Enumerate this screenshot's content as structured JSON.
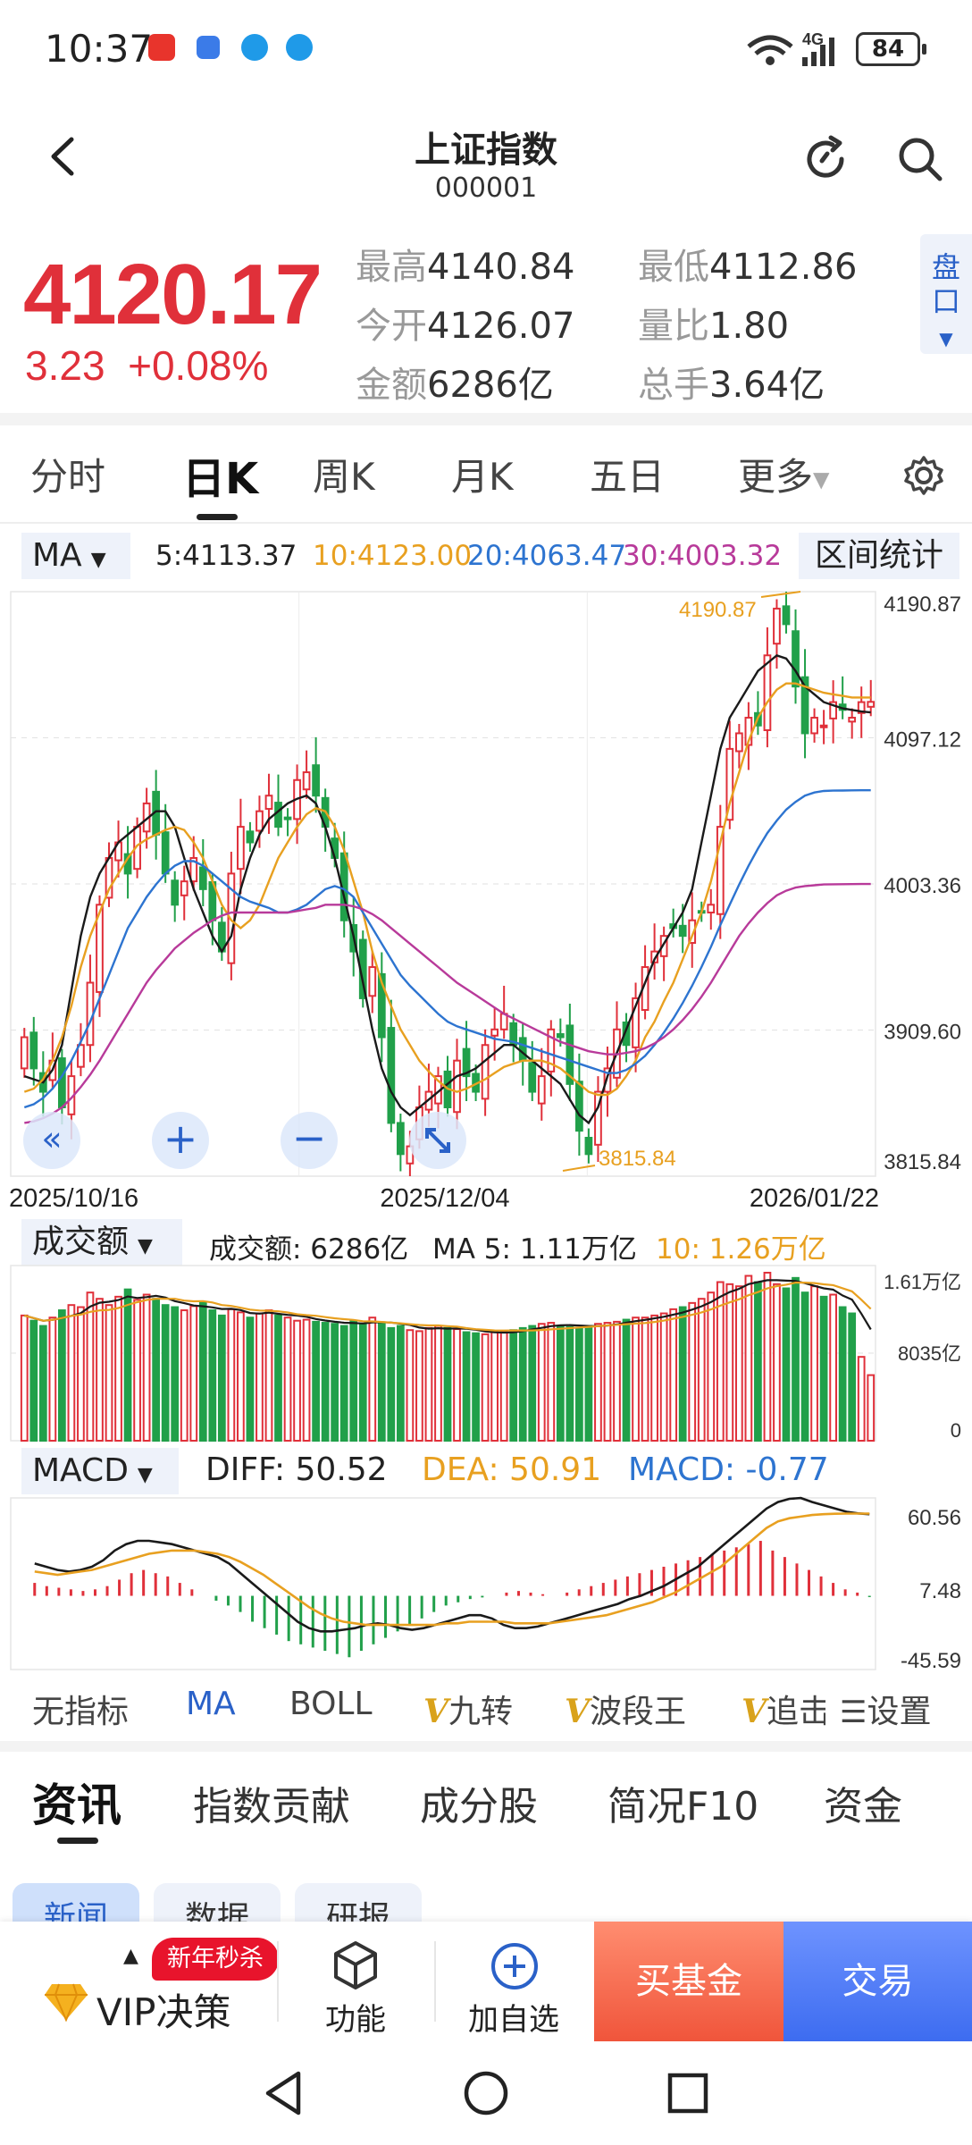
{
  "status_bar": {
    "time": "10:37",
    "network": "4G",
    "battery": "84",
    "colors": [
      "#e8342c",
      "#3b7be8",
      "#1f9ae8",
      "#1f9ae8"
    ]
  },
  "header": {
    "title": "上证指数",
    "code": "000001"
  },
  "quote": {
    "price": "4120.17",
    "change": "3.23",
    "change_pct": "+0.08%",
    "high_label": "最高",
    "high": "4140.84",
    "low_label": "最低",
    "low": "4112.86",
    "open_label": "今开",
    "open": "4126.07",
    "vol_ratio_label": "量比",
    "vol_ratio": "1.80",
    "amount_label": "金额",
    "amount": "6286亿",
    "hands_label": "总手",
    "hands": "3.64亿",
    "pan_label": "盘口"
  },
  "period_tabs": [
    {
      "label": "分时"
    },
    {
      "label": "日K"
    },
    {
      "label": "周K"
    },
    {
      "label": "月K"
    },
    {
      "label": "五日"
    },
    {
      "label": "更多"
    }
  ],
  "ma_bar": {
    "selector": "MA",
    "ma5": "5:4113.37",
    "ma10": "10:4123.00",
    "ma20": "20:4063.47",
    "ma30": "30:4003.32",
    "range_stats": "区间统计"
  },
  "kline_axis": {
    "y_labels": [
      "4190.87",
      "4097.12",
      "4003.36",
      "3909.60",
      "3815.84"
    ],
    "x_labels": [
      "2025/10/16",
      "2025/12/04",
      "2026/01/22"
    ],
    "max_annotation": "4190.87",
    "min_annotation": "3815.84"
  },
  "volume_bar": {
    "selector": "成交额",
    "amount": "成交额: 6286亿",
    "ma5": "MA 5: 1.11万亿",
    "ma10": "10: 1.26万亿",
    "y_labels": [
      "1.61万亿",
      "8035亿",
      "0"
    ]
  },
  "macd_bar": {
    "selector": "MACD",
    "diff": "DIFF: 50.52",
    "dea": "DEA: 50.91",
    "macd": "MACD: -0.77",
    "y_labels": [
      "60.56",
      "7.48",
      "-45.59"
    ]
  },
  "indicator_tabs": {
    "none": "无指标",
    "ma": "MA",
    "boll": "BOLL",
    "jiuzhuan": "九转",
    "boduan": "波段王",
    "zhuigao": "追击",
    "settings": "设置"
  },
  "news_tabs": [
    {
      "label": "资讯"
    },
    {
      "label": "指数贡献"
    },
    {
      "label": "成分股"
    },
    {
      "label": "简况F10"
    },
    {
      "label": "资金"
    }
  ],
  "news_chips": [
    {
      "label": "新闻"
    },
    {
      "label": "数据"
    },
    {
      "label": "研报"
    }
  ],
  "bottom_bar": {
    "vip": "VIP决策",
    "promo": "新年秒杀",
    "func": "功能",
    "add_watch": "加自选",
    "buy_fund": "买基金",
    "trade": "交易"
  },
  "colors": {
    "up": "#e0303a",
    "down": "#21a04a",
    "ma5": "#1a1a1a",
    "ma10": "#e8a020",
    "ma20": "#2d74d0",
    "ma30": "#b83a9a",
    "accent": "#2a61c8"
  },
  "chart_data": [
    {
      "type": "candlestick",
      "title": "日K",
      "x_range": [
        "2025/10/16",
        "2026/01/22"
      ],
      "ylim": [
        3815.84,
        4190.87
      ],
      "x_labels": [
        "2025/10/16",
        "2025/12/04",
        "2026/01/22"
      ],
      "highest": 4190.87,
      "lowest": 3815.84,
      "series": [
        {
          "name": "close",
          "values": [
            3905,
            3885,
            3870,
            3890,
            3860,
            3880,
            3900,
            3940,
            3990,
            4020,
            4030,
            4010,
            4040,
            4055,
            4035,
            4010,
            3990,
            4005,
            4020,
            4000,
            3980,
            3960,
            4010,
            4040,
            4030,
            4050,
            4060,
            4040,
            4045,
            4070,
            4075,
            4060,
            4040,
            4020,
            3980,
            3960,
            3930,
            3950,
            3905,
            3850,
            3830,
            3835,
            3860,
            3870,
            3880,
            3860,
            3890,
            3880,
            3870,
            3900,
            3910,
            3920,
            3900,
            3890,
            3870,
            3880,
            3910,
            3905,
            3875,
            3845,
            3830,
            3870,
            3885,
            3910,
            3900,
            3930,
            3950,
            3960,
            3970,
            3975,
            3970,
            3980,
            3985,
            3990,
            4040,
            4090,
            4100,
            4110,
            4105,
            4150,
            4180,
            4170,
            4130,
            4100,
            4110,
            4105,
            4120,
            4115,
            4110,
            4120,
            4120.17
          ]
        },
        {
          "name": "MA5",
          "values": [
            3880,
            3878,
            3876,
            3884,
            3900,
            3935,
            3970,
            3995,
            4010,
            4020,
            4030,
            4035,
            4040,
            4045,
            4050,
            4050,
            4040,
            4020,
            4000,
            3985,
            3970,
            3960,
            3970,
            4000,
            4020,
            4035,
            4045,
            4050,
            4055,
            4058,
            4060,
            4055,
            4040,
            4020,
            3995,
            3970,
            3940,
            3910,
            3885,
            3870,
            3860,
            3855,
            3860,
            3865,
            3870,
            3875,
            3880,
            3882,
            3885,
            3890,
            3895,
            3900,
            3900,
            3895,
            3890,
            3885,
            3880,
            3875,
            3865,
            3855,
            3850,
            3860,
            3880,
            3895,
            3910,
            3925,
            3940,
            3955,
            3965,
            3975,
            3985,
            4000,
            4030,
            4060,
            4090,
            4110,
            4120,
            4130,
            4140,
            4145,
            4150,
            4148,
            4140,
            4130,
            4125,
            4120,
            4118,
            4116,
            4115,
            4114,
            4113.37
          ]
        },
        {
          "name": "MA10",
          "values": [
            3870,
            3872,
            3878,
            3890,
            3905,
            3925,
            3950,
            3970,
            3985,
            4000,
            4010,
            4020,
            4028,
            4032,
            4035,
            4038,
            4040,
            4038,
            4030,
            4020,
            4005,
            3990,
            3980,
            3975,
            3980,
            3990,
            4005,
            4020,
            4030,
            4040,
            4048,
            4052,
            4050,
            4040,
            4025,
            4005,
            3985,
            3960,
            3940,
            3925,
            3910,
            3900,
            3890,
            3883,
            3877,
            3872,
            3870,
            3872,
            3875,
            3878,
            3882,
            3886,
            3888,
            3890,
            3890,
            3890,
            3888,
            3885,
            3880,
            3875,
            3870,
            3868,
            3868,
            3872,
            3880,
            3890,
            3905,
            3915,
            3928,
            3940,
            3955,
            3970,
            3985,
            4005,
            4030,
            4055,
            4075,
            4095,
            4110,
            4120,
            4128,
            4132,
            4132,
            4130,
            4128,
            4126,
            4125,
            4124,
            4123,
            4123,
            4123.0
          ]
        },
        {
          "name": "MA20",
          "values": [
            3860,
            3862,
            3866,
            3872,
            3880,
            3890,
            3902,
            3915,
            3930,
            3945,
            3960,
            3975,
            3985,
            3995,
            4003,
            4010,
            4015,
            4018,
            4018,
            4015,
            4010,
            4005,
            4000,
            3995,
            3992,
            3990,
            3988,
            3985,
            3985,
            3987,
            3990,
            3995,
            4000,
            4002,
            4000,
            3995,
            3985,
            3975,
            3965,
            3955,
            3945,
            3938,
            3932,
            3926,
            3920,
            3915,
            3912,
            3910,
            3908,
            3906,
            3904,
            3903,
            3902,
            3900,
            3898,
            3896,
            3894,
            3892,
            3890,
            3888,
            3886,
            3884,
            3882,
            3882,
            3884,
            3888,
            3893,
            3900,
            3908,
            3917,
            3927,
            3938,
            3950,
            3963,
            3977,
            3990,
            4003,
            4015,
            4026,
            4036,
            4044,
            4051,
            4056,
            4060,
            4062,
            4063,
            4063.2,
            4063.3,
            4063.4,
            4063.45,
            4063.47
          ]
        },
        {
          "name": "MA30",
          "values": [
            3850,
            3851,
            3853,
            3856,
            3860,
            3866,
            3873,
            3881,
            3890,
            3900,
            3910,
            3920,
            3930,
            3940,
            3948,
            3955,
            3962,
            3967,
            3972,
            3976,
            3980,
            3983,
            3985,
            3985,
            3985,
            3985,
            3985,
            3985,
            3985,
            3986,
            3987,
            3988,
            3990,
            3990,
            3990,
            3989,
            3987,
            3984,
            3980,
            3975,
            3970,
            3965,
            3960,
            3955,
            3950,
            3945,
            3940,
            3936,
            3932,
            3928,
            3924,
            3920,
            3917,
            3914,
            3911,
            3908,
            3905,
            3902,
            3900,
            3898,
            3896,
            3895,
            3894,
            3894,
            3895,
            3896,
            3898,
            3901,
            3905,
            3910,
            3916,
            3923,
            3931,
            3940,
            3950,
            3960,
            3970,
            3978,
            3985,
            3991,
            3996,
            3999,
            4001,
            4002,
            4002.5,
            4003,
            4003.1,
            4003.2,
            4003.25,
            4003.3,
            4003.32
          ]
        }
      ]
    },
    {
      "type": "bar",
      "title": "成交额",
      "ylim": [
        0,
        16100
      ],
      "ylabel": "亿",
      "series": [
        {
          "name": "成交额",
          "values": [
            12000,
            11500,
            11000,
            11800,
            12500,
            13000,
            12800,
            14200,
            13600,
            13000,
            13800,
            14500,
            13500,
            14000,
            13600,
            13000,
            12800,
            12500,
            12900,
            13200,
            12500,
            12000,
            12600,
            12300,
            11800,
            12200,
            12500,
            12000,
            11800,
            11500,
            11600,
            11400,
            11300,
            11200,
            11000,
            11500,
            11200,
            11800,
            11300,
            10800,
            11000,
            10600,
            10500,
            10800,
            11000,
            10800,
            10700,
            10400,
            10300,
            10200,
            10400,
            10500,
            10600,
            10800,
            11000,
            11200,
            11300,
            11000,
            10900,
            10800,
            11000,
            11200,
            11300,
            11400,
            11600,
            11800,
            11800,
            12000,
            12200,
            12600,
            12800,
            13200,
            13600,
            14200,
            15200,
            15000,
            14800,
            15800,
            15200,
            16100,
            15000,
            14600,
            15600,
            14200,
            14800,
            13800,
            14000,
            12800,
            12200,
            8035,
            6286
          ]
        }
      ]
    },
    {
      "type": "line",
      "title": "MACD",
      "ylim": [
        -45.59,
        60.56
      ],
      "series": [
        {
          "name": "DIFF",
          "values": [
            20,
            18,
            16,
            15,
            16,
            18,
            22,
            28,
            32,
            34,
            34,
            33,
            32,
            30,
            28,
            26,
            24,
            20,
            14,
            8,
            2,
            -4,
            -10,
            -16,
            -20,
            -22,
            -22,
            -21,
            -20,
            -18,
            -17,
            -18,
            -20,
            -21,
            -20,
            -18,
            -16,
            -14,
            -12,
            -12,
            -14,
            -18,
            -20,
            -20,
            -19,
            -17,
            -15,
            -13,
            -11,
            -9,
            -7,
            -5,
            -2,
            0,
            3,
            6,
            10,
            14,
            18,
            24,
            30,
            36,
            42,
            48,
            54,
            58,
            60,
            60.5,
            58,
            56,
            54,
            52,
            51,
            50.52
          ]
        },
        {
          "name": "DEA",
          "values": [
            15,
            14,
            13,
            14,
            15,
            16,
            18,
            20,
            22,
            24,
            26,
            27,
            28,
            28,
            28,
            27,
            26,
            24,
            21,
            17,
            13,
            8,
            3,
            -2,
            -7,
            -11,
            -14,
            -16,
            -17,
            -18,
            -18,
            -18,
            -18,
            -18,
            -18,
            -18,
            -17,
            -17,
            -16,
            -16,
            -16,
            -16,
            -17,
            -17,
            -17,
            -17,
            -16,
            -15,
            -14,
            -13,
            -12,
            -10,
            -8,
            -6,
            -4,
            -1,
            2,
            6,
            10,
            14,
            18,
            24,
            30,
            36,
            42,
            46,
            48,
            49,
            50,
            50.5,
            50.8,
            50.91,
            50.91,
            50.91
          ]
        },
        {
          "name": "MACD",
          "values": [
            8,
            6,
            5,
            4,
            3,
            4,
            6,
            10,
            14,
            16,
            14,
            12,
            8,
            4,
            0,
            -3,
            -6,
            -10,
            -16,
            -20,
            -24,
            -28,
            -30,
            -32,
            -34,
            -36,
            -38,
            -34,
            -30,
            -26,
            -22,
            -18,
            -14,
            -10,
            -6,
            -4,
            -2,
            -1,
            0,
            2,
            3,
            2,
            1,
            0,
            2,
            4,
            6,
            8,
            10,
            12,
            14,
            16,
            18,
            20,
            22,
            24,
            26,
            28,
            30,
            32,
            34,
            28,
            24,
            20,
            16,
            12,
            8,
            4,
            2,
            -0.77
          ]
        }
      ]
    }
  ]
}
